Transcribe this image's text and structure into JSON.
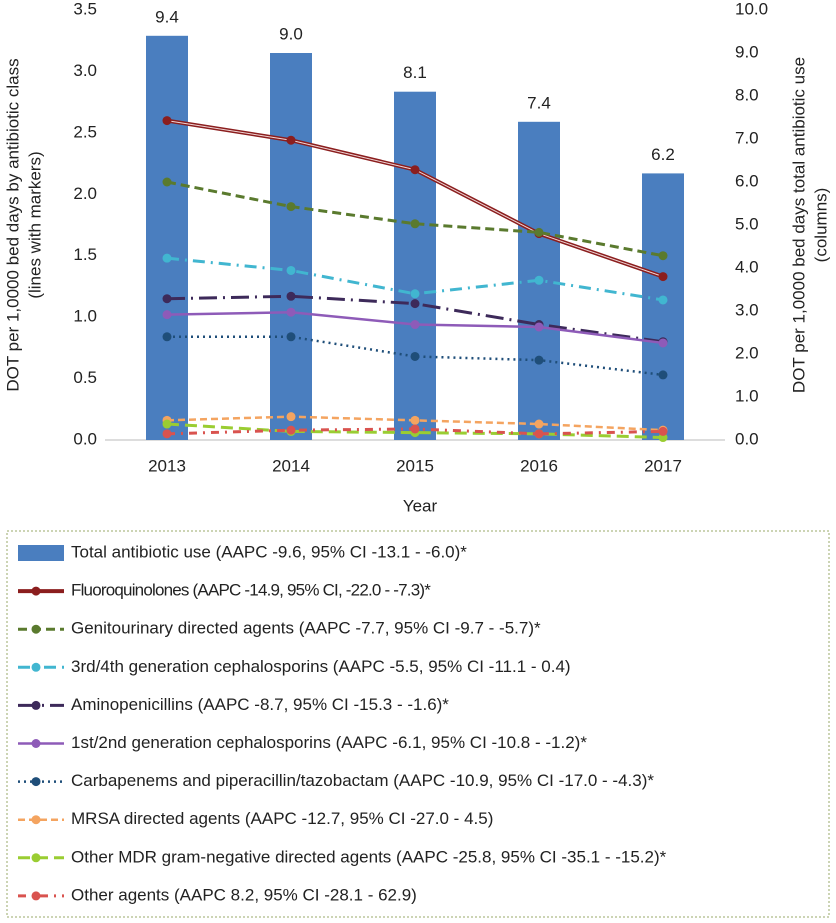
{
  "chart_data": {
    "type": "combo",
    "categories": [
      "2013",
      "2014",
      "2015",
      "2016",
      "2017"
    ],
    "x_label": "Year",
    "y_label": [
      "DOT per 1,0000 bed days by antibiotic class",
      "(lines with markers)"
    ],
    "y2_label": [
      "DOT per 1,0000 bed days total antibiotic use",
      "(columns)"
    ],
    "ylim": [
      0,
      3.5
    ],
    "yticks": [
      {
        "value": 0,
        "label": "0.0"
      },
      0.5,
      {
        "value": 1,
        "label": "1.0"
      },
      1.5,
      {
        "value": 2,
        "label": "2.0"
      },
      2.5,
      {
        "value": 3,
        "label": "3.0"
      },
      3.5
    ],
    "y2lim": [
      0,
      10
    ],
    "y2ticks": [
      {
        "value": 0,
        "label": "0.0"
      },
      {
        "value": 1,
        "label": "1.0"
      },
      {
        "value": 2,
        "label": "2.0"
      },
      {
        "value": 3,
        "label": "3.0"
      },
      {
        "value": 4,
        "label": "4.0"
      },
      {
        "value": 5,
        "label": "5.0"
      },
      {
        "value": 6,
        "label": "6.0"
      },
      {
        "value": 7,
        "label": "7.0"
      },
      {
        "value": 8,
        "label": "8.0"
      },
      {
        "value": 9,
        "label": "9.0"
      },
      {
        "value": 10,
        "label": "10.0"
      }
    ],
    "series": [
      {
        "name": "Total antibiotic use (AAPC -9.6, 95% CI -13.1 - -6.0)*",
        "type": "bar",
        "axis": "y2",
        "color": "#4a7ebf",
        "values": [
          9.4,
          9.0,
          8.1,
          7.4,
          6.2
        ],
        "value_labels": [
          "9.4",
          "9.0",
          "8.1",
          "7.4",
          "6.2"
        ]
      },
      {
        "name": "Fluoroquinolones (AAPC -14.9, 95% CI, -22.0 - -7.3)*",
        "type": "line",
        "color": "#8b1e1e",
        "values": [
          2.6,
          2.44,
          2.2,
          1.68,
          1.33
        ]
      },
      {
        "name": "Genitourinary directed agents (AAPC -7.7, 95% CI -9.7 - -5.7)*",
        "type": "line",
        "color": "#5a7a2e",
        "values": [
          2.1,
          1.9,
          1.76,
          1.69,
          1.5
        ]
      },
      {
        "name": "3rd/4th generation cephalosporins (AAPC -5.5, 95% CI -11.1 - 0.4)",
        "type": "line",
        "color": "#41b6d0",
        "values": [
          1.48,
          1.38,
          1.19,
          1.3,
          1.14
        ]
      },
      {
        "name": "Aminopenicillins (AAPC -8.7, 95% CI -15.3 - -1.6)*",
        "type": "line",
        "color": "#3d2a5a",
        "values": [
          1.15,
          1.17,
          1.11,
          0.94,
          0.8
        ]
      },
      {
        "name": "1st/2nd generation cephalosporins (AAPC -6.1, 95% CI -10.8 - -1.2)*",
        "type": "line",
        "color": "#8e5bb8",
        "values": [
          1.02,
          1.04,
          0.94,
          0.92,
          0.79
        ]
      },
      {
        "name": "Carbapenems and piperacillin/tazobactam (AAPC -10.9, 95% CI -17.0 - -4.3)*",
        "type": "line",
        "color": "#1f4e79",
        "values": [
          0.84,
          0.84,
          0.68,
          0.65,
          0.53
        ]
      },
      {
        "name": "MRSA directed agents (AAPC -12.7, 95% CI -27.0 - 4.5)",
        "type": "line",
        "color": "#f4a460",
        "values": [
          0.16,
          0.19,
          0.16,
          0.13,
          0.08
        ]
      },
      {
        "name": "Other MDR gram-negative directed agents (AAPC -25.8, 95% CI -35.1 - -15.2)*",
        "type": "line",
        "color": "#9acd32",
        "values": [
          0.13,
          0.07,
          0.06,
          0.05,
          0.02
        ]
      },
      {
        "name": "Other agents (AAPC 8.2, 95% CI -28.1 - 62.9)",
        "type": "line",
        "color": "#d9534f",
        "values": [
          0.05,
          0.08,
          0.09,
          0.05,
          0.07
        ]
      }
    ]
  }
}
